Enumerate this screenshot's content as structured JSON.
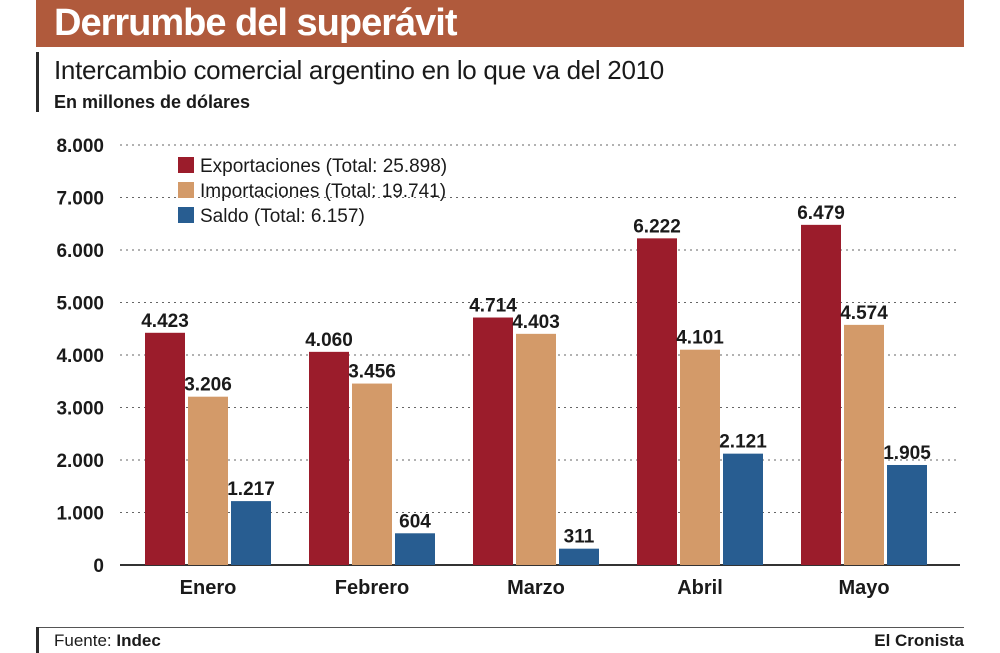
{
  "header": {
    "title": "Derrumbe del superávit"
  },
  "footer": {
    "source_label": "Fuente:",
    "source_value": "Indec",
    "brand": "El Cronista"
  },
  "colors": {
    "exportaciones": "#9b1c2b",
    "importaciones": "#d39a69",
    "saldo": "#285d91",
    "header": "#b05a3c"
  },
  "chart_data": {
    "type": "bar",
    "title": "Intercambio comercial argentino en lo que va del 2010",
    "subtitle": "En millones de dólares",
    "categories": [
      "Enero",
      "Febrero",
      "Marzo",
      "Abril",
      "Mayo"
    ],
    "series": [
      {
        "name": "Exportaciones (Total: 25.898)",
        "values": [
          4423,
          4060,
          4714,
          6222,
          6479
        ],
        "labels": [
          "4.423",
          "4.060",
          "4.714",
          "6.222",
          "6.479"
        ]
      },
      {
        "name": "Importaciones (Total: 19.741)",
        "values": [
          3206,
          3456,
          4403,
          4101,
          4574
        ],
        "labels": [
          "3.206",
          "3.456",
          "4.403",
          "4.101",
          "4.574"
        ]
      },
      {
        "name": "Saldo (Total: 6.157)",
        "values": [
          1217,
          604,
          311,
          2121,
          1905
        ],
        "labels": [
          "1.217",
          "604",
          "311",
          "2.121",
          "1.905"
        ]
      }
    ],
    "yticks": [
      0,
      1000,
      2000,
      3000,
      4000,
      5000,
      6000,
      7000,
      8000
    ],
    "ytick_labels": [
      "0",
      "1.000",
      "2.000",
      "3.000",
      "4.000",
      "5.000",
      "6.000",
      "7.000",
      "8.000"
    ],
    "ylim": [
      0,
      8000
    ],
    "grid": true,
    "legend_position": "top-left"
  }
}
